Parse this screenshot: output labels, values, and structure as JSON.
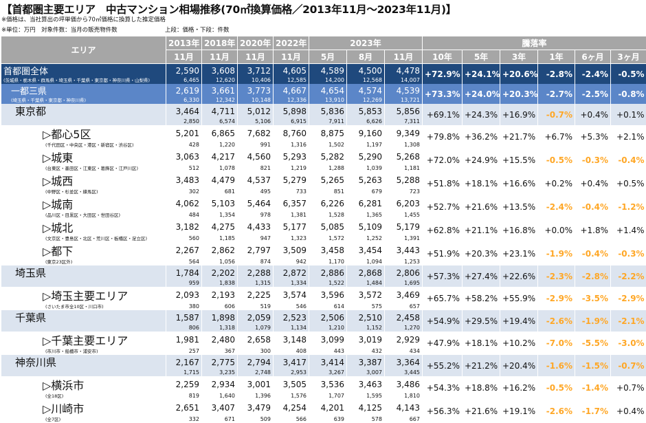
{
  "title": "【首都圏主要エリア　中古マンション相場推移(70㎡換算価格／2013年11月～2023年11月)】",
  "notes": {
    "note1": "※価格は、当社算出の坪単価から70㎡価格に換算した推定価格",
    "note2": "※単位：万円　対象件数：当月の販売物件数",
    "note3": "上段：価格・下段：件数"
  },
  "header": {
    "area": "エリア",
    "years": [
      "2013年",
      "2018年",
      "2020年",
      "2022年",
      "2023年"
    ],
    "months": [
      "11月",
      "11月",
      "11月",
      "11月",
      "5月",
      "8月",
      "11月"
    ],
    "rate_label": "騰落率",
    "rate_cols": [
      "10年",
      "5年",
      "3年",
      "1年",
      "6ヶ月",
      "3ヶ月"
    ]
  },
  "rows": [
    {
      "type": "cap",
      "name": "首都圏全体",
      "sub": "(茨城県・栃木県・群馬県・埼玉県・千葉県・東京都・神奈川県・山梨県)",
      "prices": [
        "2,590",
        "3,608",
        "3,712",
        "4,605",
        "4,589",
        "4,500",
        "4,478"
      ],
      "counts": [
        "6,465",
        "12,620",
        "10,406",
        "12,585",
        "14,200",
        "12,568",
        "14,007"
      ],
      "rates": [
        "+72.9%",
        "+24.1%",
        "+20.6%",
        "-2.8%",
        "-2.4%",
        "-0.5%"
      ]
    },
    {
      "type": "three",
      "name": "一都三県",
      "sub": "(埼玉県・千葉県・東京都・神奈川県)",
      "prices": [
        "2,619",
        "3,661",
        "3,773",
        "4,667",
        "4,654",
        "4,574",
        "4,539"
      ],
      "counts": [
        "6,330",
        "12,342",
        "10,148",
        "12,336",
        "13,910",
        "12,269",
        "13,721"
      ],
      "rates": [
        "+73.3%",
        "+24.0%",
        "+20.3%",
        "-2.7%",
        "-2.5%",
        "-0.8%"
      ]
    },
    {
      "type": "pref",
      "name": "東京都",
      "sub": "",
      "prices": [
        "3,464",
        "4,711",
        "5,012",
        "5,898",
        "5,836",
        "5,853",
        "5,856"
      ],
      "counts": [
        "2,850",
        "6,574",
        "5,106",
        "6,915",
        "7,911",
        "6,626",
        "7,311"
      ],
      "rates": [
        "+69.1%",
        "+24.3%",
        "+16.9%",
        "-0.7%",
        "+0.4%",
        "+0.1%"
      ]
    },
    {
      "type": "area",
      "name": "▷都心5区",
      "sub": "(千代田区・中央区・港区・新宿区・渋谷区)",
      "prices": [
        "5,201",
        "6,865",
        "7,682",
        "8,760",
        "8,875",
        "9,160",
        "9,349"
      ],
      "counts": [
        "428",
        "1,220",
        "991",
        "1,316",
        "1,502",
        "1,197",
        "1,308"
      ],
      "rates": [
        "+79.8%",
        "+36.2%",
        "+21.7%",
        "+6.7%",
        "+5.3%",
        "+2.1%"
      ]
    },
    {
      "type": "area",
      "name": "▷城東",
      "sub": "(台東区・墨田区・江東区・葛飾区・江戸川区)",
      "prices": [
        "3,063",
        "4,217",
        "4,560",
        "5,293",
        "5,282",
        "5,290",
        "5,268"
      ],
      "counts": [
        "512",
        "1,078",
        "821",
        "1,219",
        "1,288",
        "1,039",
        "1,181"
      ],
      "rates": [
        "+72.0%",
        "+24.9%",
        "+15.5%",
        "-0.5%",
        "-0.3%",
        "-0.4%"
      ]
    },
    {
      "type": "area",
      "name": "▷城西",
      "sub": "(中野区・杉並区・練馬区)",
      "prices": [
        "3,483",
        "4,479",
        "4,537",
        "5,279",
        "5,265",
        "5,263",
        "5,288"
      ],
      "counts": [
        "302",
        "681",
        "495",
        "733",
        "851",
        "679",
        "723"
      ],
      "rates": [
        "+51.8%",
        "+18.1%",
        "+16.6%",
        "+0.2%",
        "+0.4%",
        "+0.5%"
      ]
    },
    {
      "type": "area",
      "name": "▷城南",
      "sub": "(品川区・目黒区・大田区・世田谷区)",
      "prices": [
        "4,062",
        "5,103",
        "5,464",
        "6,357",
        "6,226",
        "6,281",
        "6,203"
      ],
      "counts": [
        "484",
        "1,354",
        "978",
        "1,381",
        "1,528",
        "1,365",
        "1,455"
      ],
      "rates": [
        "+52.7%",
        "+21.6%",
        "+13.5%",
        "-2.4%",
        "-0.4%",
        "-1.2%"
      ]
    },
    {
      "type": "area",
      "name": "▷城北",
      "sub": "(文京区・豊島区・北区・荒川区・板橋区・足立区)",
      "prices": [
        "3,182",
        "4,275",
        "4,433",
        "5,177",
        "5,085",
        "5,109",
        "5,179"
      ],
      "counts": [
        "560",
        "1,185",
        "947",
        "1,323",
        "1,572",
        "1,252",
        "1,391"
      ],
      "rates": [
        "+62.8%",
        "+21.1%",
        "+16.8%",
        "+0.0%",
        "+1.8%",
        "+1.4%"
      ]
    },
    {
      "type": "area",
      "name": "▷都下",
      "sub": "(東京23区外)",
      "prices": [
        "2,267",
        "2,862",
        "2,797",
        "3,509",
        "3,458",
        "3,454",
        "3,443"
      ],
      "counts": [
        "564",
        "1,056",
        "874",
        "942",
        "1,170",
        "1,094",
        "1,253"
      ],
      "rates": [
        "+51.9%",
        "+20.3%",
        "+23.1%",
        "-1.9%",
        "-0.4%",
        "-0.3%"
      ]
    },
    {
      "type": "pref",
      "name": "埼玉県",
      "sub": "",
      "prices": [
        "1,784",
        "2,202",
        "2,288",
        "2,872",
        "2,886",
        "2,868",
        "2,806"
      ],
      "counts": [
        "959",
        "1,838",
        "1,315",
        "1,334",
        "1,522",
        "1,484",
        "1,695"
      ],
      "rates": [
        "+57.3%",
        "+27.4%",
        "+22.6%",
        "-2.3%",
        "-2.8%",
        "-2.2%"
      ]
    },
    {
      "type": "area",
      "name": "▷埼玉主要エリア",
      "sub": "(さいたま市全10区・川口市)",
      "prices": [
        "2,093",
        "2,193",
        "2,225",
        "3,574",
        "3,596",
        "3,572",
        "3,469"
      ],
      "counts": [
        "380",
        "606",
        "519",
        "546",
        "614",
        "575",
        "657"
      ],
      "rates": [
        "+65.7%",
        "+58.2%",
        "+55.9%",
        "-2.9%",
        "-3.5%",
        "-2.9%"
      ]
    },
    {
      "type": "pref",
      "name": "千葉県",
      "sub": "",
      "prices": [
        "1,587",
        "1,898",
        "2,059",
        "2,523",
        "2,506",
        "2,510",
        "2,458"
      ],
      "counts": [
        "806",
        "1,318",
        "1,079",
        "1,134",
        "1,210",
        "1,152",
        "1,270"
      ],
      "rates": [
        "+54.9%",
        "+29.5%",
        "+19.4%",
        "-2.6%",
        "-1.9%",
        "-2.1%"
      ]
    },
    {
      "type": "area",
      "name": "▷千葉主要エリア",
      "sub": "(市川市・船橋市・浦安市)",
      "prices": [
        "1,981",
        "2,480",
        "2,658",
        "3,148",
        "3,099",
        "3,019",
        "2,929"
      ],
      "counts": [
        "257",
        "367",
        "300",
        "408",
        "443",
        "432",
        "434"
      ],
      "rates": [
        "+47.9%",
        "+18.1%",
        "+10.2%",
        "-7.0%",
        "-5.5%",
        "-3.0%"
      ]
    },
    {
      "type": "pref",
      "name": "神奈川県",
      "sub": "",
      "prices": [
        "2,167",
        "2,775",
        "2,794",
        "3,417",
        "3,414",
        "3,387",
        "3,364"
      ],
      "counts": [
        "1,715",
        "3,235",
        "2,748",
        "2,953",
        "3,267",
        "3,007",
        "3,445"
      ],
      "rates": [
        "+55.2%",
        "+21.2%",
        "+20.4%",
        "-1.6%",
        "-1.5%",
        "-0.7%"
      ]
    },
    {
      "type": "area",
      "name": "▷横浜市",
      "sub": "(全18区)",
      "prices": [
        "2,259",
        "2,934",
        "3,001",
        "3,505",
        "3,536",
        "3,463",
        "3,486"
      ],
      "counts": [
        "819",
        "1,640",
        "1,396",
        "1,576",
        "1,707",
        "1,595",
        "1,810"
      ],
      "rates": [
        "+54.3%",
        "+18.8%",
        "+16.2%",
        "-0.5%",
        "-1.4%",
        "+0.7%"
      ]
    },
    {
      "type": "area",
      "name": "▷川崎市",
      "sub": "(全7区)",
      "prices": [
        "2,651",
        "3,407",
        "3,479",
        "4,254",
        "4,201",
        "4,125",
        "4,143"
      ],
      "counts": [
        "332",
        "671",
        "509",
        "566",
        "639",
        "578",
        "667"
      ],
      "rates": [
        "+56.3%",
        "+21.6%",
        "+19.1%",
        "-2.6%",
        "-1.7%",
        "+0.4%"
      ]
    }
  ]
}
